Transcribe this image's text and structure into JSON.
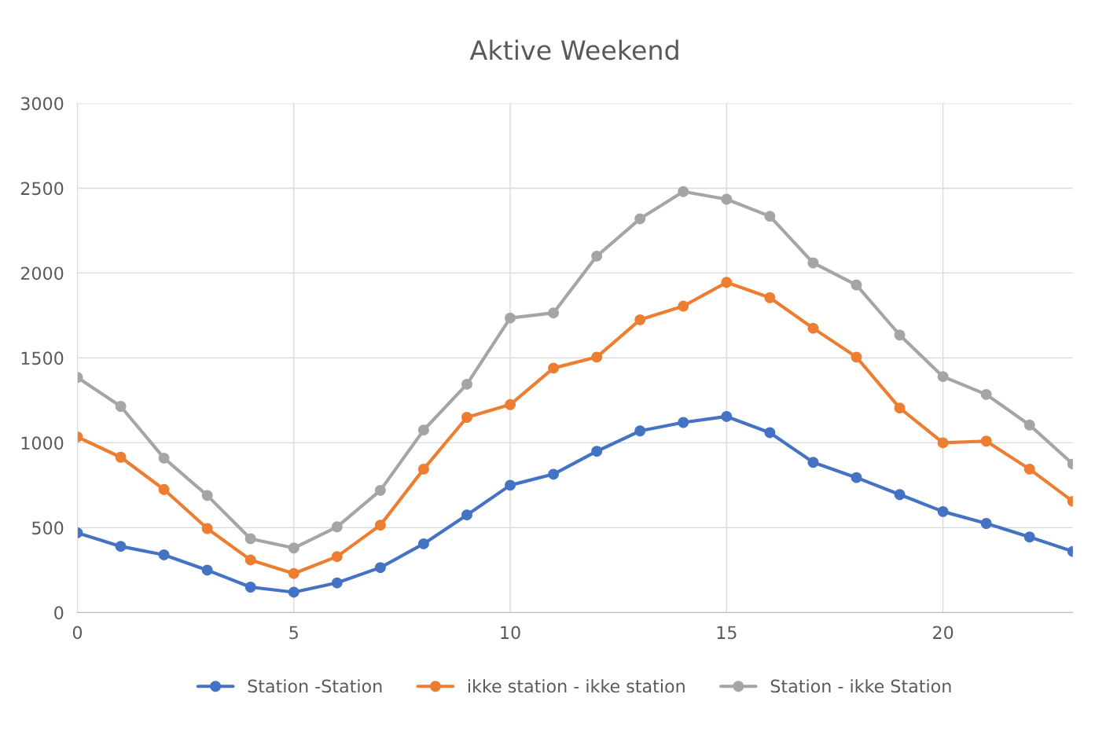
{
  "chart_data": {
    "type": "line",
    "title": "Aktive Weekend",
    "x": [
      0,
      1,
      2,
      3,
      4,
      5,
      6,
      7,
      8,
      9,
      10,
      11,
      12,
      13,
      14,
      15,
      16,
      17,
      18,
      19,
      20,
      21,
      22,
      23
    ],
    "series": [
      {
        "name": "Station -Station",
        "color": "#4472c4",
        "values": [
          470,
          390,
          340,
          250,
          150,
          120,
          175,
          265,
          405,
          575,
          750,
          815,
          950,
          1070,
          1120,
          1155,
          1060,
          885,
          795,
          695,
          595,
          525,
          445,
          360
        ]
      },
      {
        "name": "ikke station - ikke station",
        "color": "#ed7d31",
        "values": [
          1035,
          915,
          725,
          495,
          310,
          230,
          330,
          515,
          845,
          1150,
          1225,
          1440,
          1505,
          1725,
          1805,
          1945,
          1855,
          1675,
          1505,
          1205,
          1000,
          1010,
          845,
          655
        ]
      },
      {
        "name": "Station - ikke Station",
        "color": "#a5a5a5",
        "values": [
          1385,
          1215,
          910,
          690,
          435,
          380,
          505,
          720,
          1075,
          1345,
          1735,
          1765,
          2100,
          2320,
          2480,
          2435,
          2335,
          2060,
          1930,
          1635,
          1390,
          1285,
          1105,
          875
        ]
      }
    ],
    "xlim": [
      0,
      23
    ],
    "xticks": [
      0,
      5,
      10,
      15,
      20
    ],
    "ylim": [
      0,
      3000
    ],
    "yticks": [
      0,
      500,
      1000,
      1500,
      2000,
      2500,
      3000
    ],
    "grid": true,
    "legend": "bottom",
    "marker": "circle",
    "line_style": "solid"
  }
}
